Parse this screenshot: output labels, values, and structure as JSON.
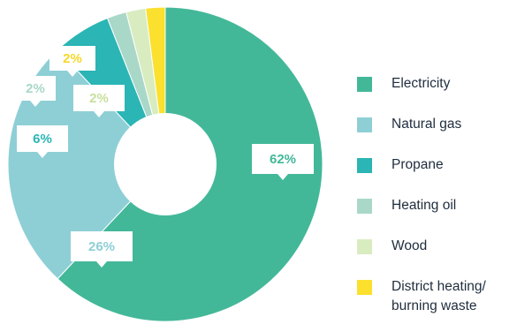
{
  "chart_data": {
    "type": "pie",
    "style": "donut",
    "title": "",
    "legend_position": "right",
    "categories": [
      "Electricity",
      "Natural gas",
      "Propane",
      "Heating oil",
      "Wood",
      "District heating/\nburning waste"
    ],
    "values": [
      62,
      26,
      6,
      2,
      2,
      2
    ],
    "value_labels": [
      "62%",
      "26%",
      "6%",
      "2%",
      "2%",
      "2%"
    ],
    "colors": [
      "#43b899",
      "#8ecfd6",
      "#2bb5b5",
      "#a9d8c8",
      "#d8ecc0",
      "#fbe02e"
    ],
    "label_colors": [
      "#43b899",
      "#8ecfd6",
      "#2bb5b5",
      "#a9d8c8",
      "#c7df9d",
      "#f4d92a"
    ]
  }
}
